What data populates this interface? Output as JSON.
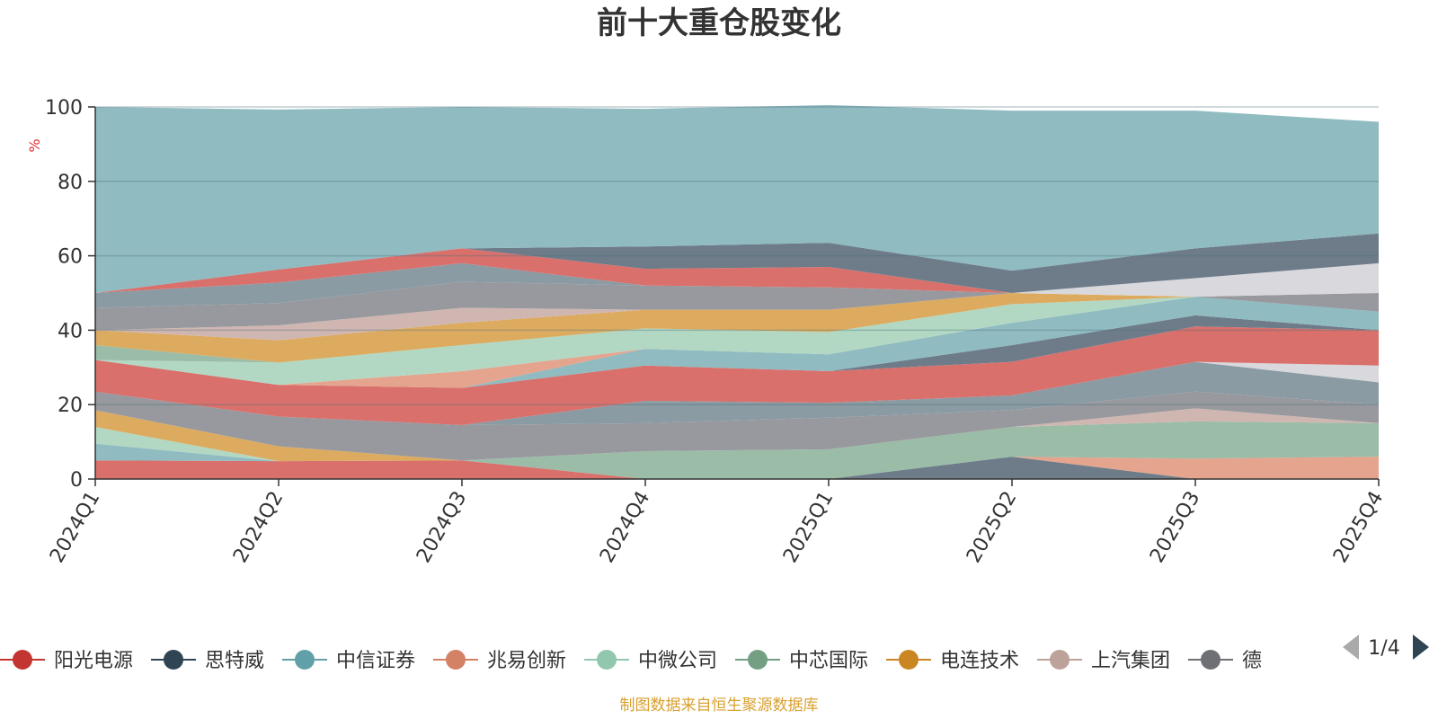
{
  "chart_data": {
    "type": "area",
    "title": "前十大重仓股变化",
    "ylabel": "%",
    "ylim": [
      0,
      100
    ],
    "yticks": [
      "0",
      "20",
      "40",
      "60",
      "80",
      "100"
    ],
    "categories": [
      "2024Q1",
      "2024Q2",
      "2024Q3",
      "2024Q4",
      "2025Q1",
      "2025Q2",
      "2025Q3",
      "2025Q4"
    ],
    "layers": [
      {
        "color": "#d9706c",
        "values": [
          5,
          4.8,
          5,
          0,
          0,
          0,
          0,
          0
        ]
      },
      {
        "color": "#6e7c8a",
        "values": [
          0,
          0,
          0,
          0,
          0,
          6,
          0,
          0
        ]
      },
      {
        "color": "#e4a48e",
        "values": [
          0,
          0,
          0,
          0,
          0,
          0,
          5.5,
          6
        ]
      },
      {
        "color": "#8fbbc1",
        "values": [
          4.5,
          0,
          0,
          0,
          0,
          0,
          0,
          0
        ]
      },
      {
        "color": "#b2d8c3",
        "values": [
          4.5,
          0,
          0,
          0,
          0,
          0,
          0,
          0
        ]
      },
      {
        "color": "#9bbca7",
        "values": [
          0,
          0,
          0,
          7.5,
          8,
          8,
          10,
          9
        ]
      },
      {
        "color": "#dcab60",
        "values": [
          4.5,
          4,
          0,
          0,
          0,
          0,
          0,
          0
        ]
      },
      {
        "color": "#d0b6b1",
        "values": [
          0,
          0,
          0,
          0,
          0,
          0,
          3.5,
          0
        ]
      },
      {
        "color": "#98999e",
        "values": [
          5,
          8,
          9.5,
          7.5,
          8.5,
          4.5,
          4.5,
          5
        ]
      },
      {
        "color": "#8a9ba4",
        "values": [
          0,
          0,
          0,
          6,
          4,
          4,
          8,
          6
        ]
      },
      {
        "color": "#d9d9dd",
        "values": [
          0,
          0,
          0,
          0,
          0,
          0,
          0,
          4.5
        ]
      },
      {
        "color": "#d9706c",
        "values": [
          8.5,
          8.5,
          10,
          9.5,
          8.5,
          9,
          9.5,
          9.5
        ]
      },
      {
        "color": "#6e7c8a",
        "values": [
          0,
          0,
          0,
          0,
          0,
          4.5,
          3,
          0
        ]
      },
      {
        "color": "#8fbbc1",
        "values": [
          0,
          0,
          0,
          4.5,
          4.5,
          6,
          5,
          5
        ]
      },
      {
        "color": "#e4a48e",
        "values": [
          0,
          0,
          4.5,
          0,
          0,
          0,
          0,
          0
        ]
      },
      {
        "color": "#b2d8c3",
        "values": [
          0,
          6,
          7,
          5.5,
          6,
          5,
          0,
          0
        ]
      },
      {
        "color": "#9bbca7",
        "values": [
          4,
          0,
          0,
          0,
          0,
          0,
          0,
          0
        ]
      },
      {
        "color": "#dcab60",
        "values": [
          4,
          6,
          6,
          5,
          6,
          3,
          0,
          0
        ]
      },
      {
        "color": "#d0b6b1",
        "values": [
          0,
          4,
          4,
          0,
          0,
          0,
          0,
          0
        ]
      },
      {
        "color": "#98999e",
        "values": [
          6,
          6,
          7,
          6.5,
          6,
          0,
          0,
          5
        ]
      },
      {
        "color": "#8a9ba4",
        "values": [
          4,
          5.5,
          5,
          0,
          0,
          0,
          0,
          0
        ]
      },
      {
        "color": "#d9d9dd",
        "values": [
          0,
          0,
          0,
          0,
          0,
          0,
          5,
          8
        ]
      },
      {
        "color": "#d9706c",
        "values": [
          0,
          3.5,
          4,
          4.5,
          5.5,
          0,
          0,
          0
        ]
      },
      {
        "color": "#6e7c8a",
        "values": [
          0,
          0,
          0,
          6,
          6.5,
          6,
          8,
          8
        ]
      },
      {
        "color": "#8fbbc1",
        "values": [
          50,
          43,
          38,
          37,
          37,
          43,
          37,
          30
        ]
      }
    ]
  },
  "legend": {
    "items": [
      {
        "label": "阳光电源",
        "color": "#c23531"
      },
      {
        "label": "思特威",
        "color": "#2f4554"
      },
      {
        "label": "中信证券",
        "color": "#61a0a8"
      },
      {
        "label": "兆易创新",
        "color": "#d48265"
      },
      {
        "label": "中微公司",
        "color": "#91c7ae"
      },
      {
        "label": "中芯国际",
        "color": "#749f83"
      },
      {
        "label": "电连技术",
        "color": "#ca8622"
      },
      {
        "label": "上汽集团",
        "color": "#bda29a"
      },
      {
        "label": "德",
        "color": "#6e7074"
      }
    ],
    "page": "1/4"
  },
  "source_note": "制图数据来自恒生聚源数据库"
}
